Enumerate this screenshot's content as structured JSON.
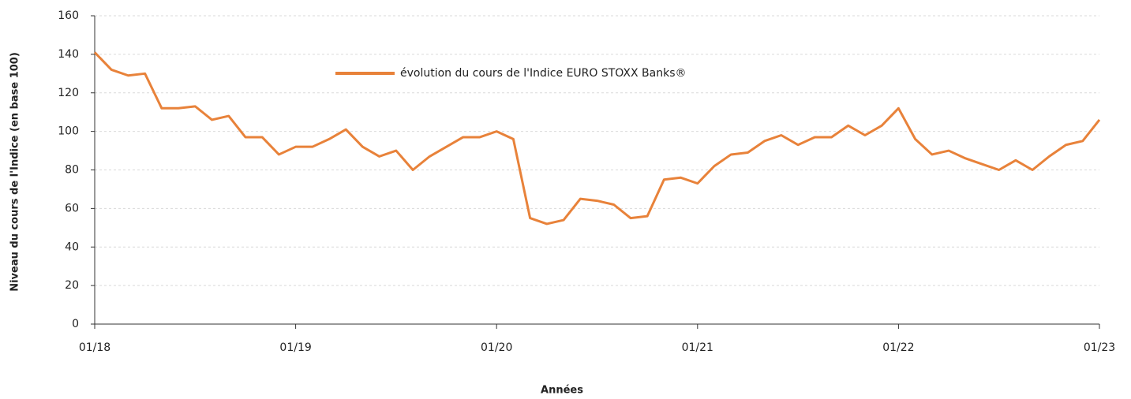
{
  "chart_data": {
    "type": "line",
    "y_label": "Niveau du cours de l'Indice (en base 100)",
    "x_label": "Années",
    "x": [
      "2018-01",
      "2018-02",
      "2018-03",
      "2018-04",
      "2018-05",
      "2018-06",
      "2018-07",
      "2018-08",
      "2018-09",
      "2018-10",
      "2018-11",
      "2018-12",
      "2019-01",
      "2019-02",
      "2019-03",
      "2019-04",
      "2019-05",
      "2019-06",
      "2019-07",
      "2019-08",
      "2019-09",
      "2019-10",
      "2019-11",
      "2019-12",
      "2020-01",
      "2020-02",
      "2020-03",
      "2020-04",
      "2020-05",
      "2020-06",
      "2020-07",
      "2020-08",
      "2020-09",
      "2020-10",
      "2020-11",
      "2020-12",
      "2021-01",
      "2021-02",
      "2021-03",
      "2021-04",
      "2021-05",
      "2021-06",
      "2021-07",
      "2021-08",
      "2021-09",
      "2021-10",
      "2021-11",
      "2021-12",
      "2022-01",
      "2022-02",
      "2022-03",
      "2022-04",
      "2022-05",
      "2022-06",
      "2022-07",
      "2022-08",
      "2022-09",
      "2022-10",
      "2022-11",
      "2022-12",
      "2023-01"
    ],
    "series": [
      {
        "name": "évolution du cours de l'Indice EURO STOXX Banks®",
        "color": "#e8823a",
        "values": [
          141,
          132,
          129,
          130,
          112,
          112,
          113,
          106,
          108,
          97,
          97,
          88,
          92,
          92,
          96,
          101,
          92,
          87,
          90,
          80,
          87,
          92,
          97,
          97,
          100,
          96,
          55,
          52,
          54,
          65,
          64,
          62,
          55,
          56,
          75,
          76,
          73,
          82,
          88,
          89,
          95,
          98,
          93,
          97,
          97,
          103,
          98,
          103,
          112,
          96,
          88,
          90,
          86,
          83,
          80,
          85,
          80,
          87,
          93,
          95,
          106
        ]
      }
    ],
    "xlim": [
      "2018-01",
      "2023-01"
    ],
    "xticks": [
      {
        "value": "2018-01",
        "label": "01/18"
      },
      {
        "value": "2019-01",
        "label": "01/19"
      },
      {
        "value": "2020-01",
        "label": "01/20"
      },
      {
        "value": "2021-01",
        "label": "01/21"
      },
      {
        "value": "2022-01",
        "label": "01/22"
      },
      {
        "value": "2023-01",
        "label": "01/23"
      }
    ],
    "ylim": [
      0,
      160
    ],
    "yticks": [
      0,
      20,
      40,
      60,
      80,
      100,
      120,
      140,
      160
    ],
    "grid": true
  }
}
